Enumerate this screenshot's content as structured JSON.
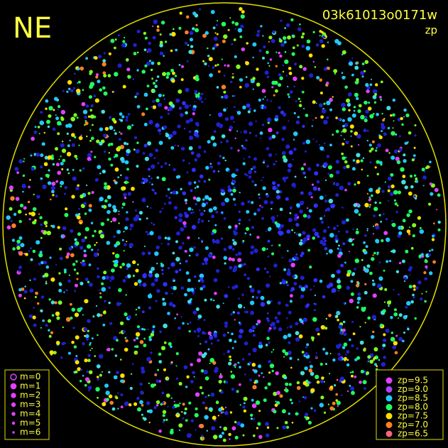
{
  "header": {
    "direction": "NE",
    "frame_id": "03k61013o0171w",
    "mode": "zp"
  },
  "legend_m": [
    "m=0",
    "m=1",
    "m=2",
    "m=3",
    "m=4",
    "m=5",
    "m=6"
  ],
  "legend_zp": [
    {
      "label": "zp=9.5",
      "color": "#e040ff"
    },
    {
      "label": "zp=9.0",
      "color": "#b040ff"
    },
    {
      "label": "zp=8.5",
      "color": "#20c8ff"
    },
    {
      "label": "zp=8.0",
      "color": "#20ff60"
    },
    {
      "label": "zp=7.5",
      "color": "#ffe000"
    },
    {
      "label": "zp=7.0",
      "color": "#ff8020"
    },
    {
      "label": "zp=6.5",
      "color": "#ff6080"
    }
  ]
}
